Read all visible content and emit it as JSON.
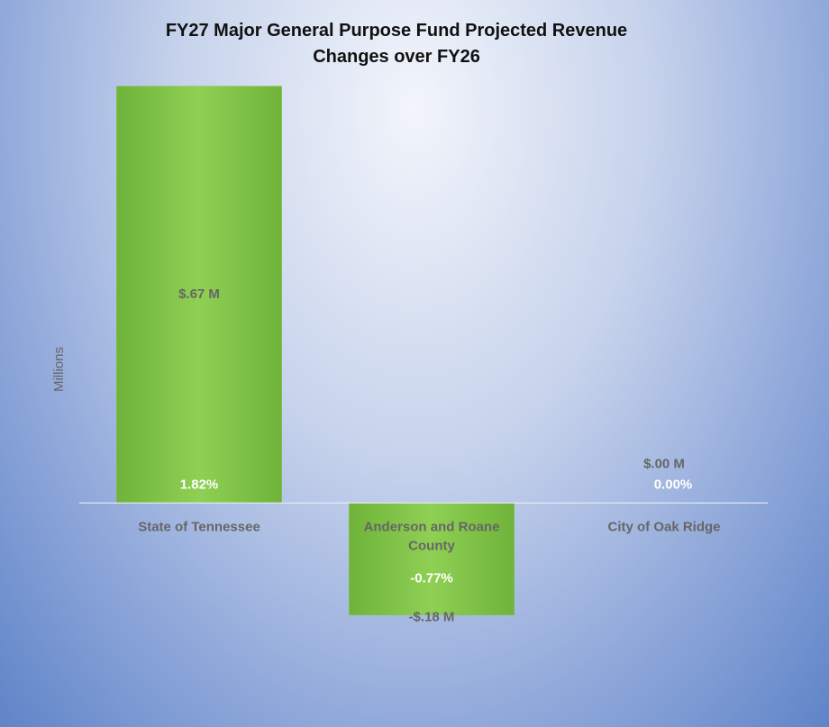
{
  "chart_data": {
    "type": "bar",
    "title": "FY27 Major General Purpose Fund Projected Revenue Changes over FY26",
    "y_label": "Millions",
    "categories": [
      "State of Tennessee",
      "Anderson and Roane County",
      "City of Oak Ridge"
    ],
    "values": [
      0.67,
      -0.18,
      0.0
    ],
    "value_labels": [
      "$.67 M",
      "-$.18 M",
      "$.00 M"
    ],
    "percent_labels": [
      "1.82%",
      "-0.77%",
      "0.00%"
    ],
    "color": "#7cc242",
    "ylim": [
      -0.35,
      0.7
    ]
  }
}
